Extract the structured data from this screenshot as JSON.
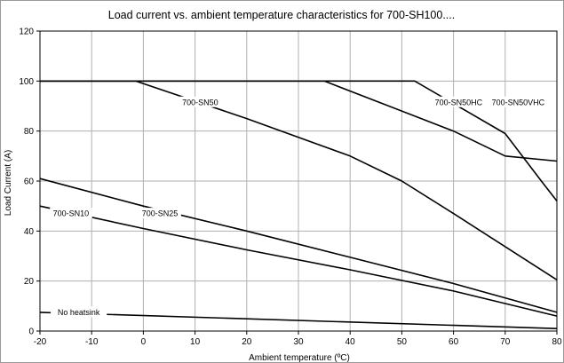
{
  "chart_data": {
    "type": "line",
    "title": "Load current vs. ambient temperature characteristics for 700-SH100....",
    "xlabel": "Ambient temperature (ºC)",
    "ylabel": "Load Current (A)",
    "xlim": [
      -20,
      80
    ],
    "ylim": [
      0,
      120
    ],
    "xticks": [
      -20,
      -10,
      0,
      10,
      20,
      30,
      40,
      50,
      60,
      70,
      80
    ],
    "yticks": [
      0,
      20,
      40,
      60,
      80,
      100,
      120
    ],
    "grid": true,
    "legend": "none",
    "line_color": "#000000",
    "grid_color": "#b0b0b0",
    "series": [
      {
        "name": "700-SN50VHC",
        "x": [
          -20,
          52.5,
          70,
          77,
          80
        ],
        "y": [
          100,
          100,
          79,
          60,
          52
        ]
      },
      {
        "name": "700-SN50HC",
        "x": [
          -20,
          35,
          60,
          70,
          80
        ],
        "y": [
          100,
          100,
          80,
          70,
          68
        ]
      },
      {
        "name": "700-SN50",
        "x": [
          -20,
          -1.5,
          20,
          40,
          50,
          60,
          80
        ],
        "y": [
          100,
          100,
          85,
          70,
          60,
          47,
          20.5
        ]
      },
      {
        "name": "700-SN25",
        "x": [
          -20,
          0,
          20,
          40,
          60,
          80
        ],
        "y": [
          61,
          50,
          40,
          29.5,
          19,
          7.5
        ]
      },
      {
        "name": "700-SN10",
        "x": [
          -20,
          0,
          20,
          40,
          60,
          80
        ],
        "y": [
          50,
          41,
          32.5,
          24.5,
          16,
          6
        ]
      },
      {
        "name": "No heatsink",
        "x": [
          -20,
          80
        ],
        "y": [
          7.5,
          1
        ]
      }
    ],
    "curve_labels": [
      {
        "text": "700-SN50VHC",
        "x": 72.5,
        "y": 91.5
      },
      {
        "text": "700-SN50HC",
        "x": 61,
        "y": 91.5
      },
      {
        "text": "700-SN50",
        "x": 11,
        "y": 91.5
      },
      {
        "text": "700-SN25",
        "x": 3.2,
        "y": 47
      },
      {
        "text": "700-SN10",
        "x": -14,
        "y": 47
      },
      {
        "text": "No heatsink",
        "x": -12.5,
        "y": 7.5
      }
    ]
  }
}
